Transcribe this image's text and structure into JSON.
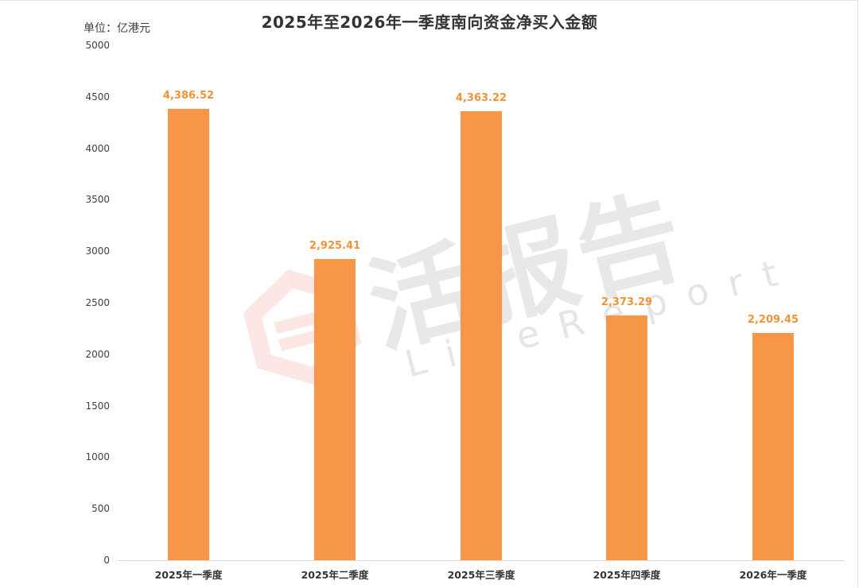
{
  "chart": {
    "title": "2025年至2026年一季度南向资金净买入金额",
    "unit_label": "单位：亿港元",
    "bar_color": "#f79646",
    "label_color": "#f39236",
    "y_ticks": [
      "5000",
      "4500",
      "4000",
      "3500",
      "3000",
      "2500",
      "2000",
      "1500",
      "1000",
      "500",
      "0"
    ],
    "bars": [
      {
        "category": "2025年一季度",
        "value": 4386.52,
        "label": "4,386.52"
      },
      {
        "category": "2025年二季度",
        "value": 2925.41,
        "label": "2,925.41"
      },
      {
        "category": "2025年三季度",
        "value": 4363.22,
        "label": "4,363.22"
      },
      {
        "category": "2025年四季度",
        "value": 2373.29,
        "label": "2,373.29"
      },
      {
        "category": "2026年一季度",
        "value": 2209.45,
        "label": "2,209.45"
      }
    ]
  },
  "watermark": {
    "text": "活报告",
    "subtext": "LiveReport"
  },
  "chart_data": {
    "type": "bar",
    "title": "2025年至2026年一季度南向资金净买入金额",
    "xlabel": "",
    "ylabel": "单位：亿港元",
    "categories": [
      "2025年一季度",
      "2025年二季度",
      "2025年三季度",
      "2025年四季度",
      "2026年一季度"
    ],
    "values": [
      4386.52,
      2925.41,
      4363.22,
      2373.29,
      2209.45
    ],
    "data_labels": [
      "4,386.52",
      "2,925.41",
      "4,363.22",
      "2,373.29",
      "2,209.45"
    ],
    "ylim": [
      0,
      5000
    ],
    "y_ticks": [
      0,
      500,
      1000,
      1500,
      2000,
      2500,
      3000,
      3500,
      4000,
      4500,
      5000
    ],
    "grid": false,
    "legend": "none",
    "color": "#f79646"
  }
}
